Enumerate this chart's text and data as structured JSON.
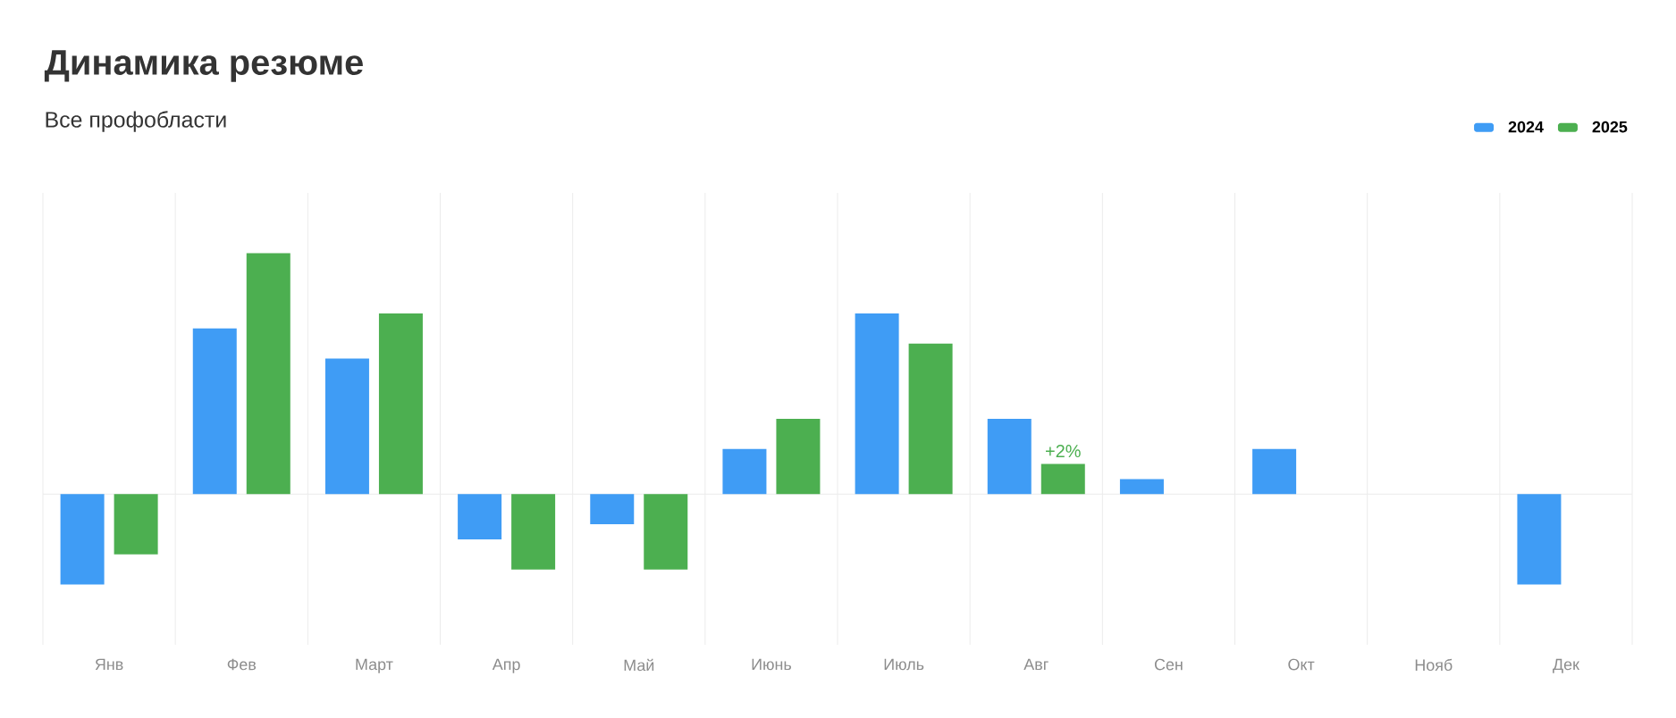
{
  "chart_data": {
    "type": "bar",
    "title": "Динамика резюме",
    "subtitle": "Все профобласти",
    "categories": [
      "Янв",
      "Фев",
      "Март",
      "Апр",
      "Май",
      "Июнь",
      "Июль",
      "Авг",
      "Сен",
      "Окт",
      "Нояб",
      "Дек"
    ],
    "series": [
      {
        "name": "2024",
        "color": "#3f9cf5",
        "values": [
          -6,
          11,
          9,
          -3,
          -2,
          3,
          12,
          5,
          1,
          3,
          null,
          -6
        ]
      },
      {
        "name": "2025",
        "color": "#4caf50",
        "values": [
          -4,
          16,
          12,
          -5,
          -5,
          5,
          10,
          2,
          null,
          null,
          null,
          null
        ],
        "value_labels": [
          null,
          null,
          null,
          null,
          null,
          null,
          null,
          "+2%",
          null,
          null,
          null,
          null
        ]
      }
    ],
    "ylim": [
      -10,
      20
    ],
    "tick_labels": "x",
    "grid": "x",
    "legend": "top right"
  }
}
